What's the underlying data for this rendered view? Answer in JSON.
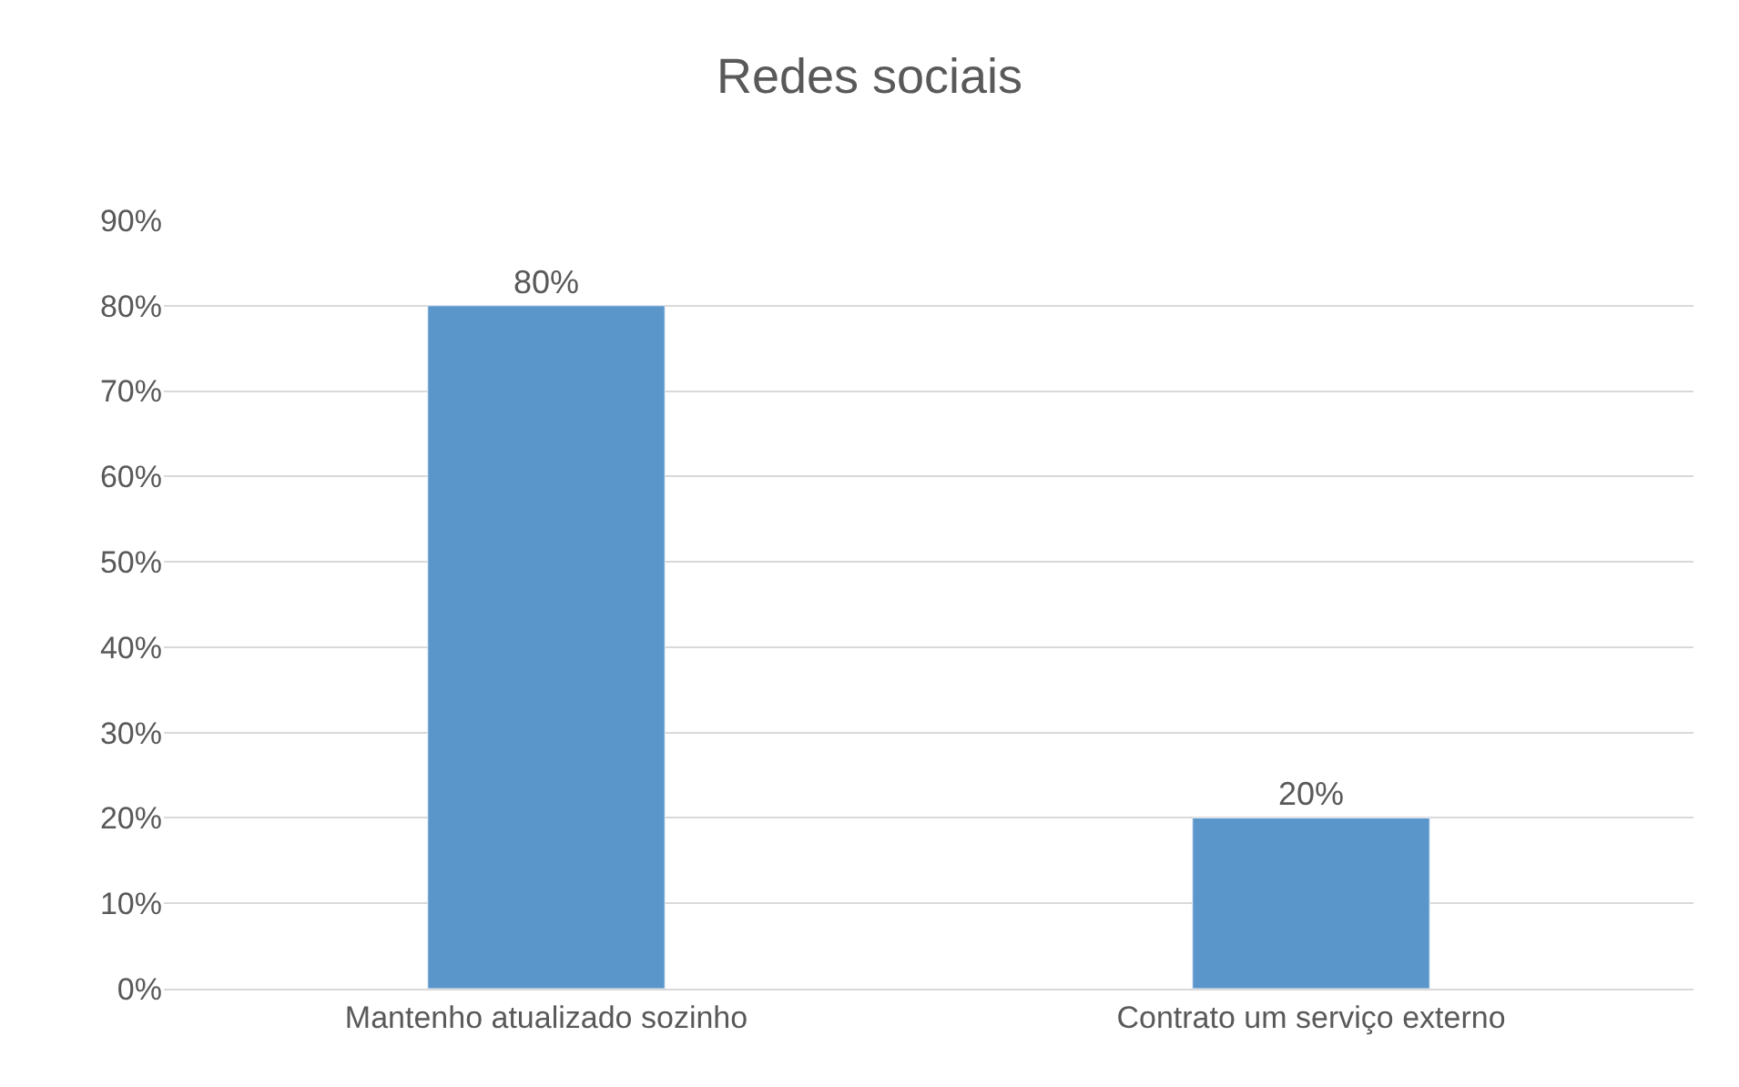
{
  "chart_data": {
    "type": "bar",
    "title": "Redes sociais",
    "categories": [
      "Mantenho atualizado sozinho",
      "Contrato um serviço externo"
    ],
    "values": [
      80,
      20
    ],
    "value_labels": [
      "80%",
      "20%"
    ],
    "color": "#5b96cb",
    "ylim": [
      0,
      90
    ],
    "yticks": [
      {
        "value": 0,
        "label": "0%"
      },
      {
        "value": 10,
        "label": "10%"
      },
      {
        "value": 20,
        "label": "20%"
      },
      {
        "value": 30,
        "label": "30%"
      },
      {
        "value": 40,
        "label": "40%"
      },
      {
        "value": 50,
        "label": "50%"
      },
      {
        "value": 60,
        "label": "60%"
      },
      {
        "value": 70,
        "label": "70%"
      },
      {
        "value": 80,
        "label": "80%"
      },
      {
        "value": 90,
        "label": "90%"
      }
    ],
    "grid": "y",
    "legend": false
  }
}
